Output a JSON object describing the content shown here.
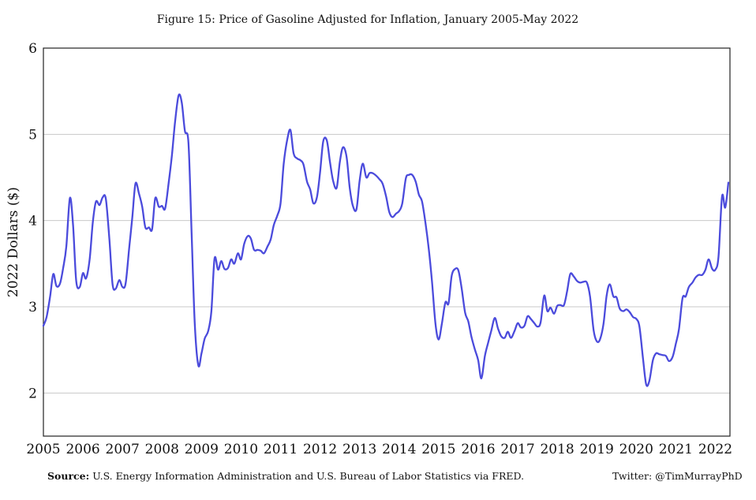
{
  "footer": {
    "source_label": "Source:",
    "source_text": "U.S. Energy Information Administration and U.S. Bureau of Labor Statistics via FRED.",
    "twitter": "Twitter: @TimMurrayPhD"
  },
  "chart_data": {
    "type": "line",
    "title": "Figure 15: Price of Gasoline Adjusted for Inflation, January 2005-May 2022",
    "xlabel": "",
    "ylabel": "2022 Dollars ($)",
    "xlim": [
      2005,
      2022.37
    ],
    "ylim": [
      1.5,
      6
    ],
    "x_ticks": [
      2005,
      2006,
      2007,
      2008,
      2009,
      2010,
      2011,
      2012,
      2013,
      2014,
      2015,
      2016,
      2017,
      2018,
      2019,
      2020,
      2021,
      2022
    ],
    "y_ticks": [
      2,
      3,
      4,
      5,
      6
    ],
    "grid": "horizontal",
    "line_color": "#4b4bdc",
    "series": [
      {
        "x": [
          2005.0,
          2005.08,
          2005.17,
          2005.25,
          2005.33,
          2005.42,
          2005.5,
          2005.58,
          2005.67,
          2005.75,
          2005.83,
          2005.92,
          2006.0,
          2006.08,
          2006.17,
          2006.25,
          2006.33,
          2006.42,
          2006.5,
          2006.58,
          2006.67,
          2006.75,
          2006.83,
          2006.92,
          2007.0,
          2007.08,
          2007.17,
          2007.25,
          2007.33,
          2007.42,
          2007.5,
          2007.58,
          2007.67,
          2007.75,
          2007.83,
          2007.92,
          2008.0,
          2008.08,
          2008.17,
          2008.25,
          2008.33,
          2008.42,
          2008.5,
          2008.58,
          2008.67,
          2008.75,
          2008.83,
          2008.92,
          2009.0,
          2009.08,
          2009.17,
          2009.25,
          2009.33,
          2009.42,
          2009.5,
          2009.58,
          2009.67,
          2009.75,
          2009.83,
          2009.92,
          2010.0,
          2010.08,
          2010.17,
          2010.25,
          2010.33,
          2010.42,
          2010.5,
          2010.58,
          2010.67,
          2010.75,
          2010.83,
          2010.92,
          2011.0,
          2011.08,
          2011.17,
          2011.25,
          2011.33,
          2011.42,
          2011.5,
          2011.58,
          2011.67,
          2011.75,
          2011.83,
          2011.92,
          2012.0,
          2012.08,
          2012.17,
          2012.25,
          2012.33,
          2012.42,
          2012.5,
          2012.58,
          2012.67,
          2012.75,
          2012.83,
          2012.92,
          2013.0,
          2013.08,
          2013.17,
          2013.25,
          2013.33,
          2013.42,
          2013.5,
          2013.58,
          2013.67,
          2013.75,
          2013.83,
          2013.92,
          2014.0,
          2014.08,
          2014.17,
          2014.25,
          2014.33,
          2014.42,
          2014.5,
          2014.58,
          2014.67,
          2014.75,
          2014.83,
          2014.92,
          2015.0,
          2015.08,
          2015.17,
          2015.25,
          2015.33,
          2015.42,
          2015.5,
          2015.58,
          2015.67,
          2015.75,
          2015.83,
          2015.92,
          2016.0,
          2016.08,
          2016.17,
          2016.25,
          2016.33,
          2016.42,
          2016.5,
          2016.58,
          2016.67,
          2016.75,
          2016.83,
          2016.92,
          2017.0,
          2017.08,
          2017.17,
          2017.25,
          2017.33,
          2017.42,
          2017.5,
          2017.58,
          2017.67,
          2017.75,
          2017.83,
          2017.92,
          2018.0,
          2018.08,
          2018.17,
          2018.25,
          2018.33,
          2018.42,
          2018.5,
          2018.58,
          2018.67,
          2018.75,
          2018.83,
          2018.92,
          2019.0,
          2019.08,
          2019.17,
          2019.25,
          2019.33,
          2019.42,
          2019.5,
          2019.58,
          2019.67,
          2019.75,
          2019.83,
          2019.92,
          2020.0,
          2020.08,
          2020.17,
          2020.25,
          2020.33,
          2020.42,
          2020.5,
          2020.58,
          2020.67,
          2020.75,
          2020.83,
          2020.92,
          2021.0,
          2021.08,
          2021.17,
          2021.25,
          2021.33,
          2021.42,
          2021.5,
          2021.58,
          2021.67,
          2021.75,
          2021.83,
          2021.92,
          2022.0,
          2022.08,
          2022.17,
          2022.25,
          2022.33
        ],
        "y": [
          2.78,
          2.88,
          3.12,
          3.38,
          3.24,
          3.27,
          3.45,
          3.7,
          4.26,
          3.95,
          3.3,
          3.23,
          3.39,
          3.33,
          3.55,
          3.98,
          4.22,
          4.18,
          4.27,
          4.25,
          3.78,
          3.26,
          3.21,
          3.31,
          3.23,
          3.27,
          3.68,
          4.04,
          4.43,
          4.31,
          4.16,
          3.92,
          3.92,
          3.9,
          4.26,
          4.16,
          4.17,
          4.14,
          4.44,
          4.75,
          5.14,
          5.45,
          5.37,
          5.04,
          4.9,
          3.85,
          2.8,
          2.32,
          2.46,
          2.63,
          2.72,
          2.95,
          3.56,
          3.43,
          3.53,
          3.44,
          3.45,
          3.55,
          3.5,
          3.62,
          3.55,
          3.73,
          3.82,
          3.79,
          3.66,
          3.66,
          3.65,
          3.62,
          3.7,
          3.78,
          3.95,
          4.06,
          4.2,
          4.66,
          4.94,
          5.05,
          4.78,
          4.72,
          4.7,
          4.65,
          4.45,
          4.36,
          4.2,
          4.27,
          4.56,
          4.92,
          4.93,
          4.68,
          4.46,
          4.38,
          4.68,
          4.85,
          4.74,
          4.38,
          4.17,
          4.13,
          4.46,
          4.66,
          4.5,
          4.55,
          4.55,
          4.52,
          4.48,
          4.43,
          4.28,
          4.1,
          4.04,
          4.08,
          4.11,
          4.2,
          4.49,
          4.53,
          4.53,
          4.45,
          4.3,
          4.22,
          3.96,
          3.67,
          3.3,
          2.8,
          2.62,
          2.8,
          3.05,
          3.04,
          3.36,
          3.44,
          3.42,
          3.22,
          2.93,
          2.83,
          2.65,
          2.5,
          2.38,
          2.17,
          2.43,
          2.58,
          2.72,
          2.87,
          2.75,
          2.66,
          2.64,
          2.71,
          2.64,
          2.72,
          2.81,
          2.76,
          2.78,
          2.89,
          2.86,
          2.81,
          2.77,
          2.82,
          3.13,
          2.95,
          2.99,
          2.92,
          3.01,
          3.02,
          3.02,
          3.18,
          3.38,
          3.35,
          3.3,
          3.28,
          3.29,
          3.28,
          3.12,
          2.73,
          2.6,
          2.62,
          2.8,
          3.13,
          3.26,
          3.12,
          3.11,
          2.98,
          2.95,
          2.97,
          2.94,
          2.88,
          2.86,
          2.77,
          2.4,
          2.1,
          2.14,
          2.38,
          2.46,
          2.45,
          2.44,
          2.43,
          2.37,
          2.42,
          2.57,
          2.74,
          3.1,
          3.12,
          3.23,
          3.28,
          3.34,
          3.37,
          3.37,
          3.43,
          3.55,
          3.44,
          3.43,
          3.58,
          4.28,
          4.15,
          4.44
        ]
      }
    ]
  }
}
